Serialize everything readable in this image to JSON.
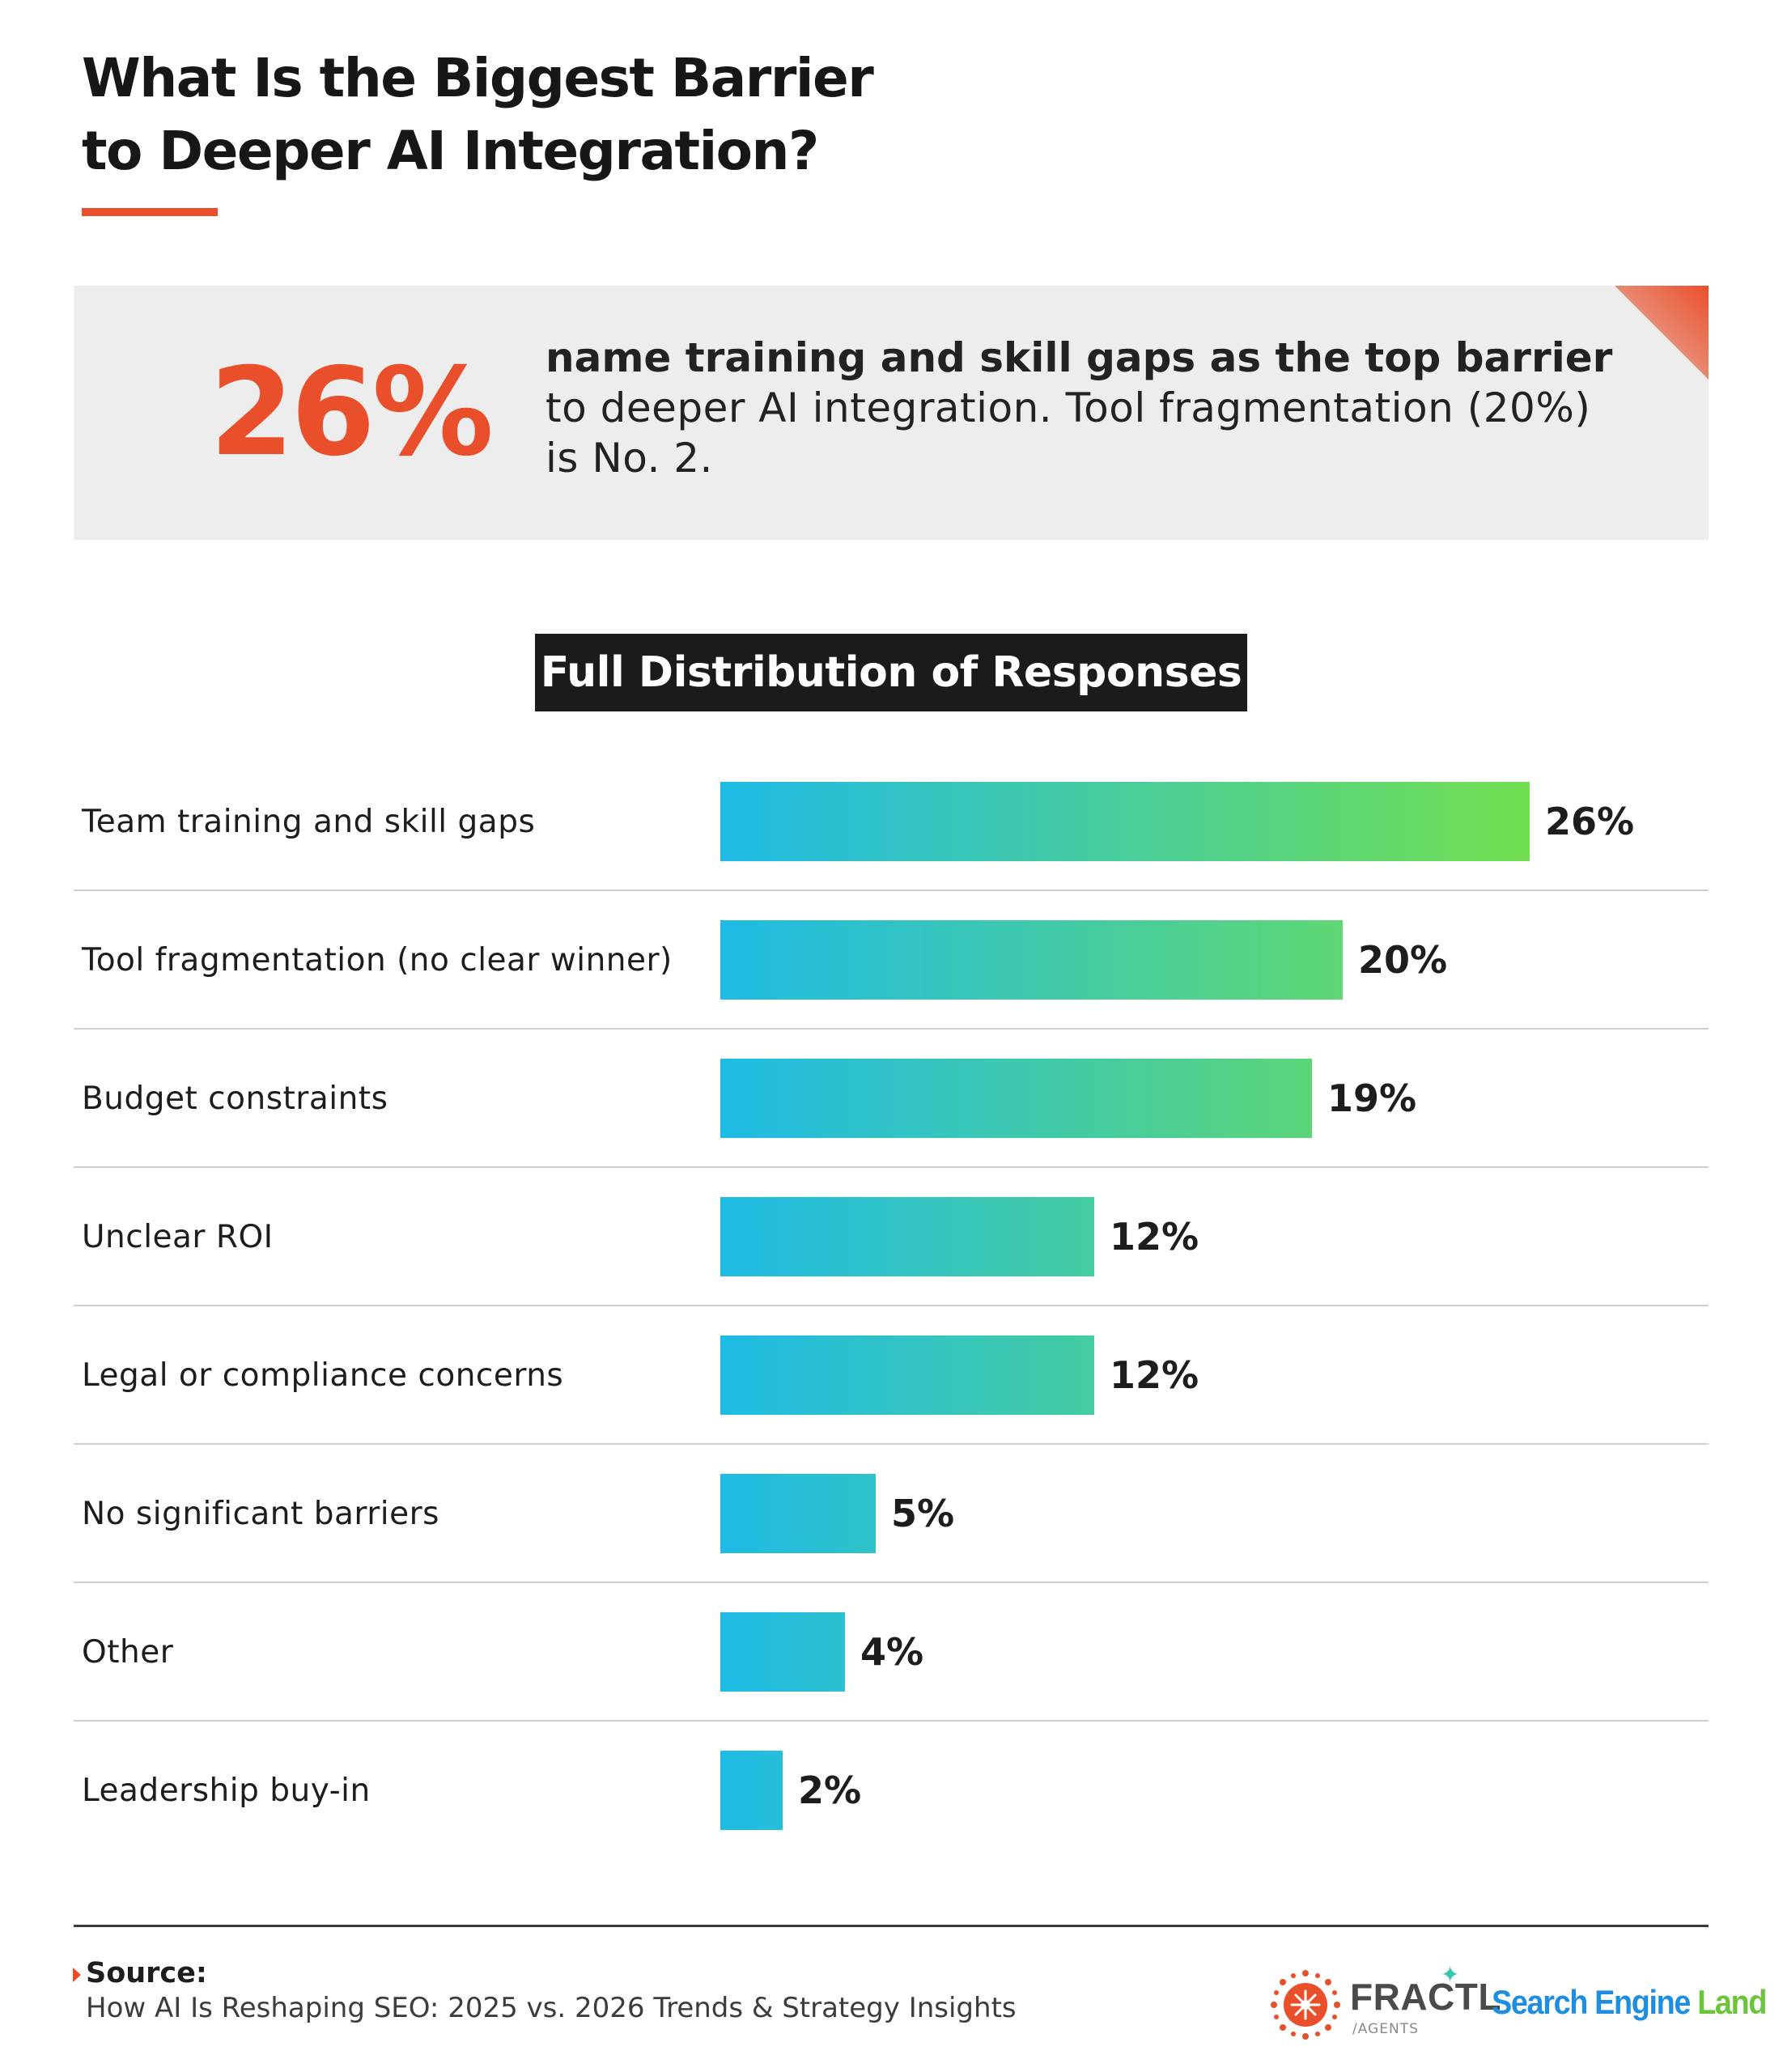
{
  "title": {
    "line1": "What Is the Biggest Barrier",
    "line2": "to Deeper AI Integration?"
  },
  "callout": {
    "stat": "26%",
    "lead": "name training and skill gaps as the top barrier",
    "rest": "to deeper AI integration. Tool fragmentation (20%) is No. 2."
  },
  "section_title": "Full Distribution of Responses",
  "chart_data": {
    "type": "bar",
    "orientation": "horizontal",
    "categories": [
      "Team training and skill gaps",
      "Tool fragmentation (no clear winner)",
      "Budget constraints",
      "Unclear ROI",
      "Legal or compliance concerns",
      "No significant barriers",
      "Other",
      "Leadership buy-in"
    ],
    "values": [
      26,
      20,
      19,
      12,
      12,
      5,
      4,
      2
    ],
    "value_labels": [
      "26%",
      "20%",
      "19%",
      "12%",
      "12%",
      "5%",
      "4%",
      "2%"
    ],
    "xlim": [
      0,
      26
    ],
    "colors": {
      "bar_start": "#1fbbe6",
      "bar_end": "#72df50"
    }
  },
  "footer": {
    "source_label": "Source:",
    "source_text": "How AI Is Reshaping SEO: 2025 vs. 2026 Trends & Strategy Insights",
    "logo1_name": "FRACTL",
    "logo1_sub": "/AGENTS",
    "logo2_part1": "Search Engine",
    "logo2_part2": "Land"
  },
  "colors": {
    "accent": "#ea4f2b",
    "callout_bg": "#ededed",
    "badge_bg": "#1b1b1b"
  }
}
